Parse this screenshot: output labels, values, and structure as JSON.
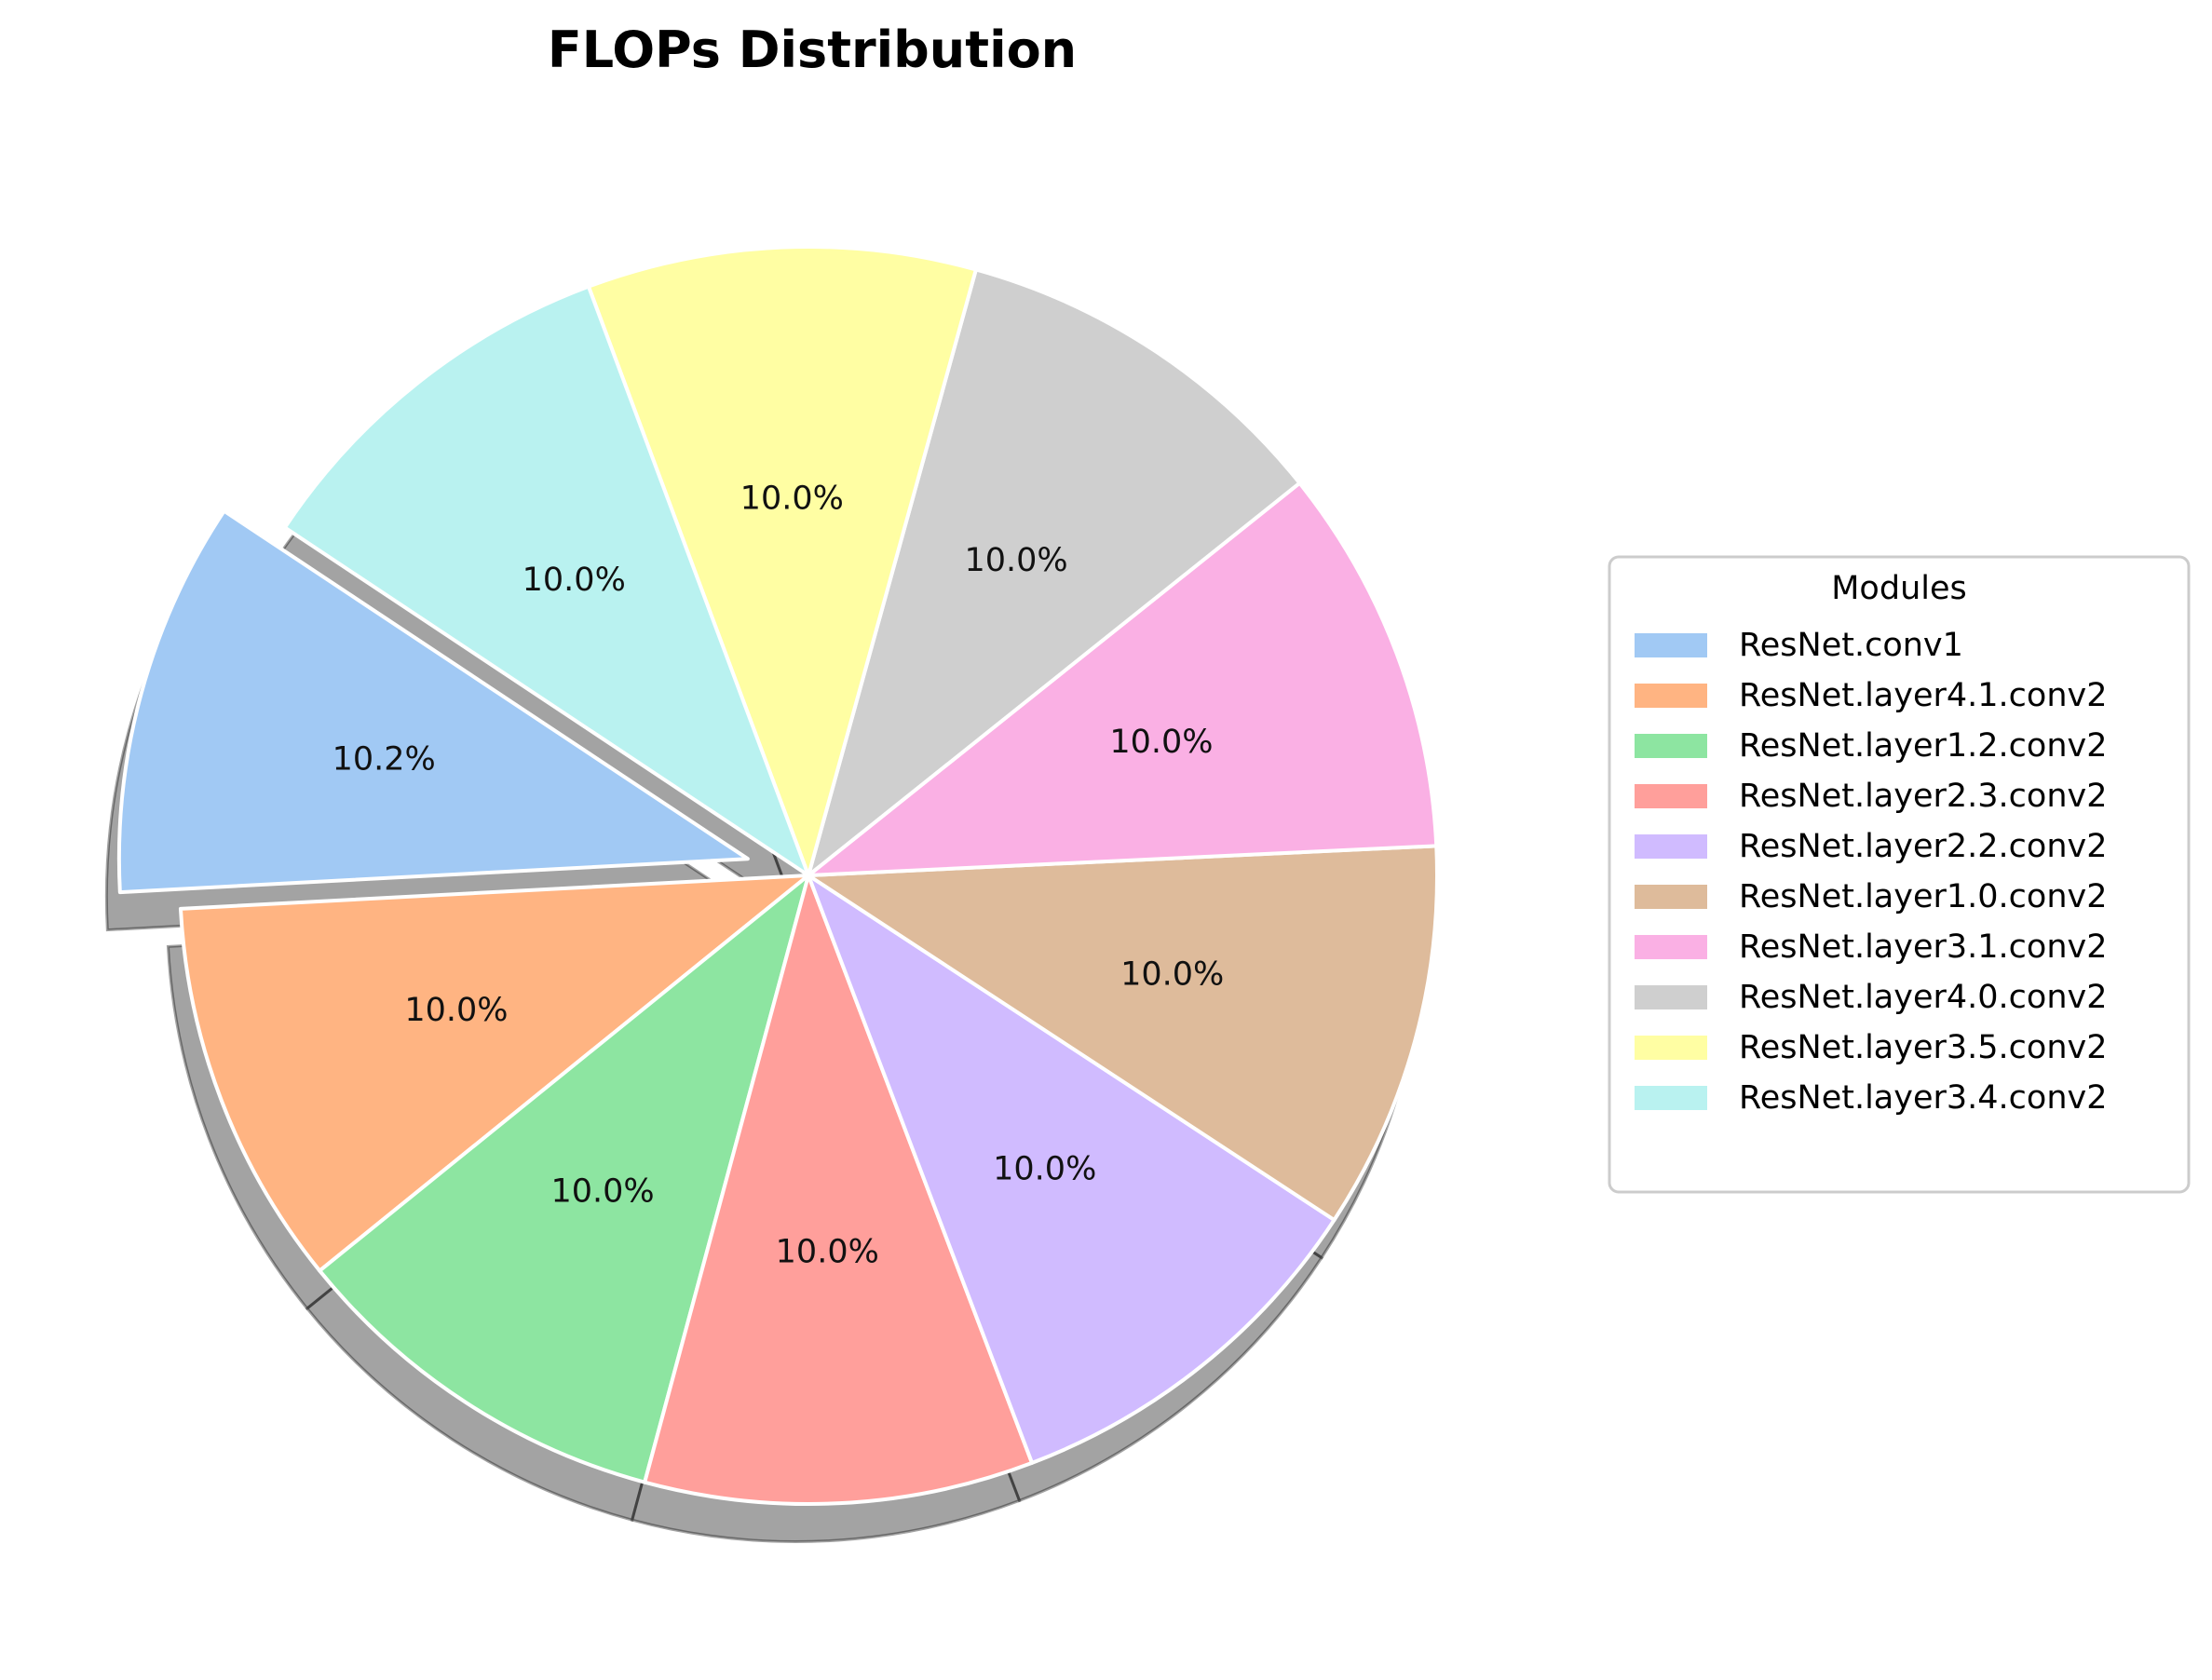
{
  "chart_data": {
    "type": "pie",
    "title": "FLOPs Distribution",
    "legend_title": "Modules",
    "legend_position": "right",
    "start_angle_deg": 146.4,
    "direction": "counterclockwise",
    "shadow": true,
    "exploded": [
      "ResNet.conv1"
    ],
    "slices": [
      {
        "label": "ResNet.conv1",
        "value": 10.2,
        "pct_label": "10.2%",
        "color": "#a1c9f4"
      },
      {
        "label": "ResNet.layer4.1.conv2",
        "value": 10.0,
        "pct_label": "10.0%",
        "color": "#ffb482"
      },
      {
        "label": "ResNet.layer1.2.conv2",
        "value": 10.0,
        "pct_label": "10.0%",
        "color": "#8de5a1"
      },
      {
        "label": "ResNet.layer2.3.conv2",
        "value": 10.0,
        "pct_label": "10.0%",
        "color": "#ff9f9b"
      },
      {
        "label": "ResNet.layer2.2.conv2",
        "value": 10.0,
        "pct_label": "10.0%",
        "color": "#d0bbff"
      },
      {
        "label": "ResNet.layer1.0.conv2",
        "value": 10.0,
        "pct_label": "10.0%",
        "color": "#debb9b"
      },
      {
        "label": "ResNet.layer3.1.conv2",
        "value": 10.0,
        "pct_label": "10.0%",
        "color": "#fab0e4"
      },
      {
        "label": "ResNet.layer4.0.conv2",
        "value": 10.0,
        "pct_label": "10.0%",
        "color": "#cfcfcf"
      },
      {
        "label": "ResNet.layer3.5.conv2",
        "value": 10.0,
        "pct_label": "10.0%",
        "color": "#fffea3"
      },
      {
        "label": "ResNet.layer3.4.conv2",
        "value": 10.0,
        "pct_label": "10.0%",
        "color": "#b9f2f0"
      }
    ]
  }
}
